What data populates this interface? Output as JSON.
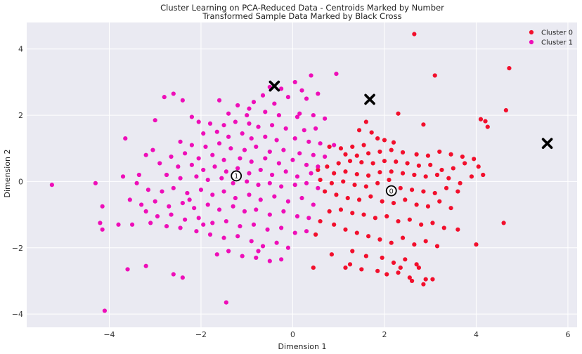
{
  "chart_data": {
    "type": "scatter",
    "title": "Cluster Learning on PCA-Reduced Data - Centroids Marked by Number",
    "subtitle": "Transformed Sample Data Marked by Black Cross",
    "xlabel": "Dimension 1",
    "ylabel": "Dimension 2",
    "xlim": [
      -5.8,
      6.2
    ],
    "ylim": [
      -4.4,
      4.8
    ],
    "xticks": [
      -4,
      -2,
      0,
      2,
      4,
      6
    ],
    "yticks": [
      -4,
      -2,
      0,
      2,
      4
    ],
    "grid": true,
    "legend_position": "top-right",
    "series": [
      {
        "name": "Cluster 0",
        "color": "#f20f2c",
        "points": [
          [
            2.65,
            4.45
          ],
          [
            4.72,
            3.42
          ],
          [
            3.1,
            3.2
          ],
          [
            4.65,
            2.15
          ],
          [
            2.3,
            2.05
          ],
          [
            4.1,
            1.88
          ],
          [
            4.2,
            1.82
          ],
          [
            4.25,
            1.65
          ],
          [
            2.85,
            1.72
          ],
          [
            1.6,
            1.8
          ],
          [
            1.45,
            1.55
          ],
          [
            1.72,
            1.48
          ],
          [
            1.85,
            1.3
          ],
          [
            2.0,
            1.25
          ],
          [
            2.2,
            1.18
          ],
          [
            1.55,
            1.1
          ],
          [
            1.3,
            1.05
          ],
          [
            1.05,
            1.0
          ],
          [
            0.8,
            1.05
          ],
          [
            1.15,
            0.82
          ],
          [
            1.4,
            0.78
          ],
          [
            1.65,
            0.85
          ],
          [
            1.9,
            0.9
          ],
          [
            2.15,
            0.95
          ],
          [
            2.4,
            0.88
          ],
          [
            2.7,
            0.82
          ],
          [
            2.95,
            0.78
          ],
          [
            3.2,
            0.9
          ],
          [
            3.45,
            0.82
          ],
          [
            3.7,
            0.75
          ],
          [
            3.95,
            0.68
          ],
          [
            4.05,
            0.45
          ],
          [
            3.75,
            0.55
          ],
          [
            3.5,
            0.4
          ],
          [
            3.25,
            0.35
          ],
          [
            3.0,
            0.5
          ],
          [
            2.75,
            0.48
          ],
          [
            2.5,
            0.55
          ],
          [
            2.25,
            0.6
          ],
          [
            2.0,
            0.62
          ],
          [
            1.75,
            0.55
          ],
          [
            1.5,
            0.58
          ],
          [
            1.25,
            0.62
          ],
          [
            1.0,
            0.55
          ],
          [
            0.75,
            0.45
          ],
          [
            0.55,
            0.35
          ],
          [
            0.9,
            0.25
          ],
          [
            1.15,
            0.3
          ],
          [
            1.4,
            0.22
          ],
          [
            1.65,
            0.18
          ],
          [
            1.9,
            0.28
          ],
          [
            2.15,
            0.3
          ],
          [
            2.4,
            0.25
          ],
          [
            2.65,
            0.2
          ],
          [
            2.9,
            0.15
          ],
          [
            3.15,
            0.2
          ],
          [
            3.4,
            0.1
          ],
          [
            3.65,
            -0.05
          ],
          [
            3.9,
            0.15
          ],
          [
            4.15,
            0.2
          ],
          [
            0.6,
            0.05
          ],
          [
            0.85,
            -0.05
          ],
          [
            1.1,
            0.0
          ],
          [
            1.35,
            -0.1
          ],
          [
            1.6,
            -0.15
          ],
          [
            1.85,
            -0.05
          ],
          [
            2.1,
            0.05
          ],
          [
            2.35,
            -0.2
          ],
          [
            2.6,
            -0.25
          ],
          [
            2.85,
            -0.3
          ],
          [
            3.1,
            -0.35
          ],
          [
            3.35,
            -0.2
          ],
          [
            3.6,
            -0.3
          ],
          [
            0.7,
            -0.3
          ],
          [
            0.95,
            -0.4
          ],
          [
            1.2,
            -0.5
          ],
          [
            1.45,
            -0.55
          ],
          [
            1.7,
            -0.45
          ],
          [
            1.95,
            -0.6
          ],
          [
            2.2,
            -0.65
          ],
          [
            2.45,
            -0.55
          ],
          [
            2.7,
            -0.7
          ],
          [
            2.95,
            -0.75
          ],
          [
            3.2,
            -0.6
          ],
          [
            3.45,
            -0.8
          ],
          [
            0.8,
            -0.9
          ],
          [
            1.05,
            -0.85
          ],
          [
            1.3,
            -0.95
          ],
          [
            1.55,
            -1.0
          ],
          [
            1.8,
            -1.1
          ],
          [
            2.05,
            -1.05
          ],
          [
            2.3,
            -1.2
          ],
          [
            2.55,
            -1.15
          ],
          [
            2.8,
            -1.3
          ],
          [
            3.05,
            -1.25
          ],
          [
            3.3,
            -1.4
          ],
          [
            3.6,
            -1.45
          ],
          [
            0.6,
            -1.2
          ],
          [
            0.9,
            -1.3
          ],
          [
            1.15,
            -1.45
          ],
          [
            1.4,
            -1.55
          ],
          [
            1.65,
            -1.65
          ],
          [
            1.9,
            -1.75
          ],
          [
            2.15,
            -1.85
          ],
          [
            2.4,
            -1.7
          ],
          [
            2.65,
            -1.9
          ],
          [
            2.9,
            -1.8
          ],
          [
            3.15,
            -1.95
          ],
          [
            0.5,
            -1.6
          ],
          [
            0.85,
            -2.2
          ],
          [
            1.3,
            -2.1
          ],
          [
            1.6,
            -2.25
          ],
          [
            1.95,
            -2.3
          ],
          [
            2.2,
            -2.45
          ],
          [
            2.45,
            -2.35
          ],
          [
            2.7,
            -2.5
          ],
          [
            1.25,
            -2.5
          ],
          [
            1.5,
            -2.65
          ],
          [
            1.85,
            -2.7
          ],
          [
            2.05,
            -2.8
          ],
          [
            2.3,
            -2.75
          ],
          [
            2.55,
            -2.9
          ],
          [
            2.75,
            -2.6
          ],
          [
            0.45,
            -2.6
          ],
          [
            2.9,
            -2.95
          ],
          [
            3.05,
            -2.95
          ],
          [
            2.85,
            -3.1
          ],
          [
            2.6,
            -3.0
          ],
          [
            4.6,
            -1.25
          ],
          [
            4.0,
            -1.9
          ],
          [
            1.15,
            -2.6
          ],
          [
            2.35,
            -2.6
          ]
        ]
      },
      {
        "name": "Cluster 1",
        "color": "#ee0eb8",
        "points": [
          [
            0.95,
            3.25
          ],
          [
            0.4,
            3.2
          ],
          [
            0.05,
            3.0
          ],
          [
            -0.5,
            2.85
          ],
          [
            -0.25,
            2.8
          ],
          [
            0.2,
            2.75
          ],
          [
            0.55,
            2.65
          ],
          [
            -0.65,
            2.6
          ],
          [
            -0.1,
            2.55
          ],
          [
            0.3,
            2.5
          ],
          [
            -0.85,
            2.4
          ],
          [
            -2.6,
            2.65
          ],
          [
            -2.4,
            2.45
          ],
          [
            -2.8,
            2.55
          ],
          [
            -1.6,
            2.45
          ],
          [
            -1.2,
            2.3
          ],
          [
            -0.95,
            2.2
          ],
          [
            -0.6,
            2.1
          ],
          [
            -0.3,
            2.0
          ],
          [
            0.15,
            2.05
          ],
          [
            0.45,
            2.0
          ],
          [
            0.7,
            1.9
          ],
          [
            -1.0,
            2.0
          ],
          [
            -1.4,
            2.05
          ],
          [
            -2.2,
            1.95
          ],
          [
            -2.05,
            1.8
          ],
          [
            -1.8,
            1.75
          ],
          [
            -1.5,
            1.7
          ],
          [
            -1.25,
            1.8
          ],
          [
            -0.75,
            1.65
          ],
          [
            -0.45,
            1.7
          ],
          [
            -0.15,
            1.6
          ],
          [
            0.25,
            1.55
          ],
          [
            0.5,
            1.6
          ],
          [
            -3.0,
            1.85
          ],
          [
            -1.95,
            1.45
          ],
          [
            -1.65,
            1.5
          ],
          [
            -1.4,
            1.35
          ],
          [
            -1.1,
            1.45
          ],
          [
            -0.9,
            1.3
          ],
          [
            -0.6,
            1.35
          ],
          [
            -0.35,
            1.25
          ],
          [
            0.05,
            1.3
          ],
          [
            0.35,
            1.2
          ],
          [
            0.6,
            1.15
          ],
          [
            0.9,
            1.1
          ],
          [
            -3.65,
            1.3
          ],
          [
            -2.45,
            1.2
          ],
          [
            -2.2,
            1.1
          ],
          [
            -1.9,
            1.05
          ],
          [
            -1.6,
            1.15
          ],
          [
            -1.35,
            1.0
          ],
          [
            -1.05,
            0.95
          ],
          [
            -0.8,
            1.05
          ],
          [
            -0.5,
            0.9
          ],
          [
            -0.2,
            0.95
          ],
          [
            0.15,
            0.85
          ],
          [
            0.45,
            0.8
          ],
          [
            0.7,
            0.75
          ],
          [
            -3.05,
            0.95
          ],
          [
            -3.2,
            0.8
          ],
          [
            -2.65,
            0.75
          ],
          [
            -2.35,
            0.85
          ],
          [
            -2.05,
            0.7
          ],
          [
            -1.75,
            0.8
          ],
          [
            -1.5,
            0.65
          ],
          [
            -1.15,
            0.7
          ],
          [
            -0.9,
            0.6
          ],
          [
            -0.6,
            0.7
          ],
          [
            -0.3,
            0.55
          ],
          [
            0.0,
            0.65
          ],
          [
            0.3,
            0.5
          ],
          [
            0.55,
            0.45
          ],
          [
            -2.9,
            0.55
          ],
          [
            -2.5,
            0.45
          ],
          [
            -2.2,
            0.5
          ],
          [
            -1.95,
            0.35
          ],
          [
            -1.7,
            0.45
          ],
          [
            -1.45,
            0.3
          ],
          [
            -1.2,
            0.4
          ],
          [
            -0.95,
            0.25
          ],
          [
            -0.7,
            0.35
          ],
          [
            -0.45,
            0.2
          ],
          [
            -0.15,
            0.3
          ],
          [
            0.1,
            0.15
          ],
          [
            0.4,
            0.25
          ],
          [
            -3.7,
            0.15
          ],
          [
            -3.35,
            0.2
          ],
          [
            -2.75,
            0.2
          ],
          [
            -2.45,
            0.1
          ],
          [
            -2.1,
            0.15
          ],
          [
            -1.85,
            0.05
          ],
          [
            -1.55,
            0.1
          ],
          [
            -1.3,
            -0.05
          ],
          [
            -1.0,
            0.0
          ],
          [
            -0.75,
            -0.1
          ],
          [
            -0.5,
            -0.05
          ],
          [
            -0.25,
            -0.15
          ],
          [
            0.05,
            -0.1
          ],
          [
            0.3,
            -0.05
          ],
          [
            0.55,
            -0.2
          ],
          [
            -3.4,
            -0.05
          ],
          [
            -3.15,
            -0.25
          ],
          [
            -2.85,
            -0.3
          ],
          [
            -2.6,
            -0.2
          ],
          [
            -2.3,
            -0.35
          ],
          [
            -2.0,
            -0.25
          ],
          [
            -1.75,
            -0.4
          ],
          [
            -1.5,
            -0.3
          ],
          [
            -1.25,
            -0.5
          ],
          [
            -0.95,
            -0.4
          ],
          [
            -0.7,
            -0.55
          ],
          [
            -0.4,
            -0.45
          ],
          [
            -0.1,
            -0.6
          ],
          [
            0.2,
            -0.5
          ],
          [
            0.45,
            -0.7
          ],
          [
            -3.55,
            -0.55
          ],
          [
            -3.3,
            -0.7
          ],
          [
            -3.0,
            -0.6
          ],
          [
            -2.7,
            -0.75
          ],
          [
            -2.4,
            -0.65
          ],
          [
            -2.15,
            -0.8
          ],
          [
            -1.85,
            -0.7
          ],
          [
            -1.6,
            -0.85
          ],
          [
            -1.3,
            -0.75
          ],
          [
            -1.05,
            -0.9
          ],
          [
            -0.8,
            -0.85
          ],
          [
            -0.5,
            -1.0
          ],
          [
            -0.2,
            -0.9
          ],
          [
            0.1,
            -1.05
          ],
          [
            0.35,
            -1.1
          ],
          [
            -3.2,
            -0.9
          ],
          [
            -2.95,
            -1.05
          ],
          [
            -2.65,
            -1.0
          ],
          [
            -2.35,
            -1.15
          ],
          [
            -2.05,
            -1.1
          ],
          [
            -1.75,
            -1.25
          ],
          [
            -1.45,
            -1.2
          ],
          [
            -1.15,
            -1.35
          ],
          [
            -0.85,
            -1.3
          ],
          [
            -0.55,
            -1.45
          ],
          [
            -0.25,
            -1.4
          ],
          [
            0.05,
            -1.55
          ],
          [
            0.3,
            -1.5
          ],
          [
            -3.5,
            -1.3
          ],
          [
            -3.1,
            -1.25
          ],
          [
            -2.75,
            -1.35
          ],
          [
            -2.45,
            -1.4
          ],
          [
            -2.1,
            -1.5
          ],
          [
            -1.8,
            -1.6
          ],
          [
            -1.5,
            -1.7
          ],
          [
            -1.2,
            -1.65
          ],
          [
            -0.9,
            -1.8
          ],
          [
            -0.65,
            -1.95
          ],
          [
            -0.35,
            -1.85
          ],
          [
            -0.1,
            -2.0
          ],
          [
            -1.4,
            -2.1
          ],
          [
            -1.1,
            -2.25
          ],
          [
            -0.8,
            -2.3
          ],
          [
            -0.5,
            -2.4
          ],
          [
            -0.25,
            -2.35
          ],
          [
            -1.65,
            -2.2
          ],
          [
            -2.6,
            -2.8
          ],
          [
            -2.4,
            -2.9
          ],
          [
            -3.6,
            -2.65
          ],
          [
            -3.2,
            -2.55
          ],
          [
            -4.2,
            -1.25
          ],
          [
            -4.15,
            -1.45
          ],
          [
            -4.3,
            -0.05
          ],
          [
            -4.15,
            -0.75
          ],
          [
            -3.8,
            -1.3
          ],
          [
            -5.25,
            -0.1
          ],
          [
            -4.1,
            -3.9
          ],
          [
            -1.45,
            -3.65
          ],
          [
            -0.75,
            -2.1
          ],
          [
            -1.95,
            -1.3
          ],
          [
            -2.25,
            -0.55
          ],
          [
            -0.95,
            1.75
          ],
          [
            -0.4,
            2.35
          ],
          [
            0.1,
            1.95
          ]
        ]
      }
    ],
    "centroids": [
      {
        "label": "0",
        "x": 2.15,
        "y": -0.28
      },
      {
        "label": "1",
        "x": -1.23,
        "y": 0.17
      }
    ],
    "samples": [
      [
        -0.4,
        2.88
      ],
      [
        1.68,
        2.48
      ],
      [
        5.55,
        1.15
      ]
    ]
  }
}
